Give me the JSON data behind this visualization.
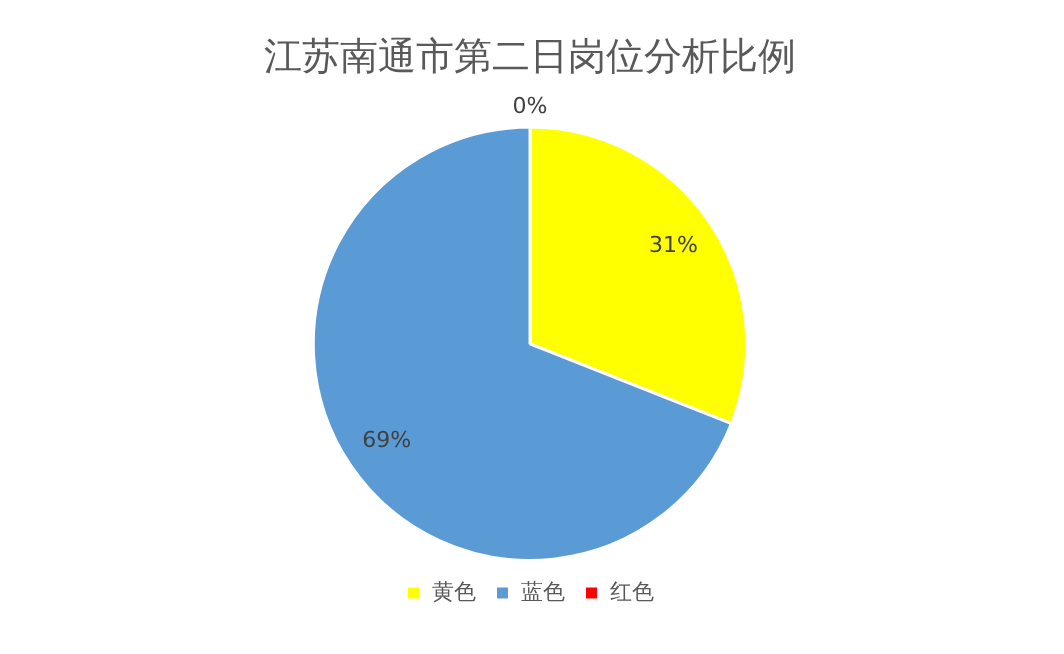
{
  "chart_data": {
    "type": "pie",
    "title": "江苏南通市第二日岗位分析比例",
    "categories": [
      "黄色",
      "蓝色",
      "红色"
    ],
    "values": [
      31,
      69,
      0
    ],
    "colors": [
      "#ffff00",
      "#5b9bd5",
      "#ff0000"
    ],
    "value_labels": [
      "31%",
      "69%",
      "0%"
    ],
    "legend": "bottom"
  }
}
